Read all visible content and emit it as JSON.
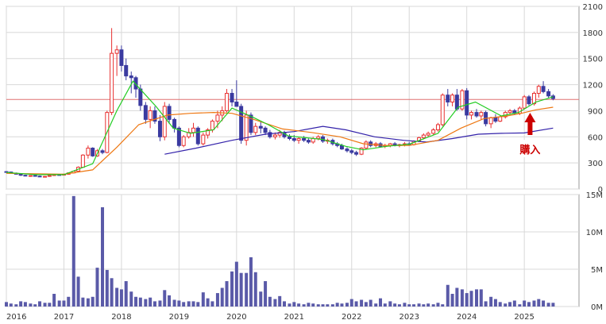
{
  "chart_data": [
    {
      "type": "candlestick",
      "x_labels": [
        "2016",
        "2017",
        "2018",
        "2019",
        "2020",
        "2021",
        "2022",
        "2023",
        "2024",
        "2025"
      ],
      "y_ticks": [
        "0",
        "300",
        "600",
        "900",
        "1200",
        "1500",
        "1800",
        "2100"
      ],
      "ylim": [
        0,
        2100
      ],
      "reference_line": 1030,
      "annotation": "購入",
      "colors": {
        "up": "#e83030",
        "down": "#3a3aa0",
        "ma_short": "#22cc22",
        "ma_mid": "#ee7711",
        "ma_long": "#3322aa",
        "ref": "#e07070",
        "annot": "#cc0000"
      },
      "grid": true,
      "candles": [
        [
          2016.0,
          200,
          205,
          188,
          195
        ],
        [
          2016.08,
          195,
          200,
          180,
          182
        ],
        [
          2016.17,
          182,
          190,
          165,
          170
        ],
        [
          2016.25,
          170,
          175,
          150,
          158
        ],
        [
          2016.33,
          158,
          165,
          145,
          150
        ],
        [
          2016.42,
          150,
          160,
          140,
          155
        ],
        [
          2016.5,
          155,
          162,
          145,
          148
        ],
        [
          2016.58,
          148,
          155,
          138,
          142
        ],
        [
          2016.67,
          142,
          150,
          135,
          145
        ],
        [
          2016.75,
          145,
          160,
          140,
          155
        ],
        [
          2016.83,
          155,
          170,
          150,
          165
        ],
        [
          2016.92,
          165,
          172,
          158,
          160
        ],
        [
          2017.0,
          160,
          175,
          155,
          170
        ],
        [
          2017.08,
          170,
          190,
          165,
          185
        ],
        [
          2017.17,
          185,
          210,
          180,
          205
        ],
        [
          2017.25,
          205,
          260,
          200,
          250
        ],
        [
          2017.33,
          250,
          400,
          245,
          390
        ],
        [
          2017.42,
          390,
          500,
          350,
          470
        ],
        [
          2017.5,
          470,
          480,
          370,
          380
        ],
        [
          2017.58,
          380,
          460,
          370,
          440
        ],
        [
          2017.67,
          440,
          460,
          400,
          420
        ],
        [
          2017.75,
          420,
          900,
          410,
          880
        ],
        [
          2017.83,
          880,
          1850,
          850,
          1560
        ],
        [
          2017.92,
          1560,
          1650,
          1300,
          1600
        ],
        [
          2018.0,
          1600,
          1650,
          1350,
          1420
        ],
        [
          2018.08,
          1420,
          1500,
          1250,
          1300
        ],
        [
          2018.17,
          1300,
          1350,
          1100,
          1280
        ],
        [
          2018.25,
          1280,
          1300,
          1050,
          1150
        ],
        [
          2018.33,
          1150,
          1200,
          900,
          960
        ],
        [
          2018.42,
          960,
          1000,
          750,
          800
        ],
        [
          2018.5,
          800,
          950,
          700,
          900
        ],
        [
          2018.58,
          900,
          950,
          750,
          780
        ],
        [
          2018.67,
          780,
          850,
          550,
          600
        ],
        [
          2018.75,
          600,
          1000,
          560,
          950
        ],
        [
          2018.83,
          950,
          980,
          750,
          800
        ],
        [
          2018.92,
          800,
          820,
          650,
          700
        ],
        [
          2019.0,
          700,
          720,
          480,
          500
        ],
        [
          2019.08,
          500,
          620,
          480,
          600
        ],
        [
          2019.17,
          600,
          700,
          580,
          650
        ],
        [
          2019.25,
          650,
          760,
          600,
          700
        ],
        [
          2019.33,
          700,
          720,
          500,
          520
        ],
        [
          2019.42,
          520,
          650,
          500,
          620
        ],
        [
          2019.5,
          620,
          700,
          580,
          680
        ],
        [
          2019.58,
          680,
          800,
          650,
          780
        ],
        [
          2019.67,
          780,
          900,
          700,
          850
        ],
        [
          2019.75,
          850,
          950,
          780,
          900
        ],
        [
          2019.83,
          900,
          1150,
          880,
          1100
        ],
        [
          2019.92,
          1100,
          1150,
          950,
          1000
        ],
        [
          2020.0,
          1000,
          1250,
          950,
          950
        ],
        [
          2020.08,
          950,
          980,
          520,
          560
        ],
        [
          2020.17,
          560,
          900,
          500,
          850
        ],
        [
          2020.25,
          850,
          880,
          620,
          650
        ],
        [
          2020.33,
          650,
          760,
          620,
          720
        ],
        [
          2020.42,
          720,
          780,
          640,
          700
        ],
        [
          2020.5,
          700,
          720,
          620,
          650
        ],
        [
          2020.58,
          650,
          680,
          580,
          600
        ],
        [
          2020.67,
          600,
          650,
          570,
          620
        ],
        [
          2020.75,
          620,
          680,
          590,
          650
        ],
        [
          2020.83,
          650,
          670,
          580,
          600
        ],
        [
          2020.92,
          600,
          630,
          560,
          580
        ],
        [
          2021.0,
          580,
          620,
          540,
          560
        ],
        [
          2021.08,
          560,
          600,
          520,
          580
        ],
        [
          2021.17,
          580,
          610,
          540,
          560
        ],
        [
          2021.25,
          560,
          580,
          520,
          540
        ],
        [
          2021.33,
          540,
          600,
          520,
          580
        ],
        [
          2021.42,
          580,
          620,
          560,
          600
        ],
        [
          2021.5,
          600,
          620,
          530,
          550
        ],
        [
          2021.58,
          550,
          580,
          520,
          560
        ],
        [
          2021.67,
          560,
          580,
          500,
          520
        ],
        [
          2021.75,
          520,
          540,
          480,
          500
        ],
        [
          2021.83,
          500,
          520,
          450,
          460
        ],
        [
          2021.92,
          460,
          480,
          420,
          440
        ],
        [
          2022.0,
          440,
          460,
          400,
          420
        ],
        [
          2022.08,
          420,
          440,
          380,
          400
        ],
        [
          2022.17,
          400,
          480,
          390,
          470
        ],
        [
          2022.25,
          470,
          560,
          460,
          540
        ],
        [
          2022.33,
          540,
          560,
          480,
          500
        ],
        [
          2022.42,
          500,
          540,
          480,
          520
        ],
        [
          2022.5,
          520,
          540,
          480,
          490
        ],
        [
          2022.58,
          490,
          520,
          470,
          500
        ],
        [
          2022.67,
          500,
          530,
          480,
          520
        ],
        [
          2022.75,
          520,
          540,
          490,
          500
        ],
        [
          2022.83,
          500,
          520,
          480,
          510
        ],
        [
          2022.92,
          510,
          540,
          490,
          520
        ],
        [
          2023.0,
          520,
          540,
          500,
          510
        ],
        [
          2023.08,
          510,
          560,
          500,
          550
        ],
        [
          2023.17,
          550,
          600,
          540,
          590
        ],
        [
          2023.25,
          590,
          640,
          570,
          620
        ],
        [
          2023.33,
          620,
          660,
          600,
          640
        ],
        [
          2023.42,
          640,
          700,
          620,
          680
        ],
        [
          2023.5,
          680,
          760,
          660,
          740
        ],
        [
          2023.58,
          740,
          1100,
          720,
          1080
        ],
        [
          2023.67,
          1080,
          1150,
          950,
          1000
        ],
        [
          2023.75,
          1000,
          1100,
          950,
          1080
        ],
        [
          2023.83,
          1080,
          1150,
          900,
          920
        ],
        [
          2023.92,
          920,
          1150,
          900,
          1130
        ],
        [
          2024.0,
          1130,
          1160,
          800,
          850
        ],
        [
          2024.08,
          850,
          900,
          800,
          880
        ],
        [
          2024.17,
          880,
          920,
          820,
          840
        ],
        [
          2024.25,
          840,
          900,
          800,
          880
        ],
        [
          2024.33,
          880,
          900,
          720,
          750
        ],
        [
          2024.42,
          750,
          830,
          700,
          820
        ],
        [
          2024.5,
          820,
          860,
          760,
          780
        ],
        [
          2024.58,
          780,
          850,
          770,
          830
        ],
        [
          2024.67,
          830,
          900,
          810,
          880
        ],
        [
          2024.75,
          880,
          920,
          860,
          900
        ],
        [
          2024.83,
          900,
          920,
          850,
          870
        ],
        [
          2024.92,
          870,
          950,
          850,
          930
        ],
        [
          2025.0,
          930,
          1080,
          920,
          1060
        ],
        [
          2025.08,
          1060,
          1080,
          960,
          980
        ],
        [
          2025.17,
          980,
          1120,
          960,
          1100
        ],
        [
          2025.25,
          1100,
          1200,
          1050,
          1180
        ],
        [
          2025.33,
          1180,
          1240,
          1100,
          1120
        ],
        [
          2025.42,
          1120,
          1150,
          1050,
          1070
        ],
        [
          2025.5,
          1070,
          1090,
          1020,
          1040
        ]
      ],
      "ma_short": [
        [
          2016.0,
          190
        ],
        [
          2016.5,
          165
        ],
        [
          2017.0,
          165
        ],
        [
          2017.5,
          290
        ],
        [
          2017.92,
          900
        ],
        [
          2018.2,
          1240
        ],
        [
          2018.6,
          950
        ],
        [
          2018.9,
          700
        ],
        [
          2019.2,
          640
        ],
        [
          2019.6,
          680
        ],
        [
          2019.92,
          930
        ],
        [
          2020.3,
          820
        ],
        [
          2020.55,
          740
        ],
        [
          2020.9,
          610
        ],
        [
          2021.5,
          570
        ],
        [
          2021.9,
          490
        ],
        [
          2022.2,
          450
        ],
        [
          2022.6,
          490
        ],
        [
          2023.0,
          515
        ],
        [
          2023.5,
          640
        ],
        [
          2023.85,
          940
        ],
        [
          2024.15,
          1000
        ],
        [
          2024.6,
          840
        ],
        [
          2024.9,
          880
        ],
        [
          2025.2,
          1000
        ],
        [
          2025.5,
          1060
        ]
      ],
      "ma_mid": [
        [
          2016.0,
          180
        ],
        [
          2016.5,
          175
        ],
        [
          2017.0,
          170
        ],
        [
          2017.5,
          220
        ],
        [
          2017.92,
          480
        ],
        [
          2018.3,
          740
        ],
        [
          2018.8,
          850
        ],
        [
          2019.2,
          870
        ],
        [
          2019.6,
          880
        ],
        [
          2019.92,
          870
        ],
        [
          2020.3,
          800
        ],
        [
          2020.8,
          690
        ],
        [
          2021.3,
          650
        ],
        [
          2021.8,
          600
        ],
        [
          2022.2,
          520
        ],
        [
          2022.6,
          500
        ],
        [
          2023.0,
          500
        ],
        [
          2023.5,
          560
        ],
        [
          2023.9,
          700
        ],
        [
          2024.3,
          810
        ],
        [
          2024.7,
          840
        ],
        [
          2024.95,
          870
        ],
        [
          2025.2,
          910
        ],
        [
          2025.5,
          940
        ]
      ],
      "ma_long": [
        [
          2018.75,
          400
        ],
        [
          2019.3,
          470
        ],
        [
          2019.92,
          560
        ],
        [
          2020.5,
          630
        ],
        [
          2021.0,
          660
        ],
        [
          2021.5,
          720
        ],
        [
          2021.9,
          680
        ],
        [
          2022.4,
          600
        ],
        [
          2022.9,
          560
        ],
        [
          2023.3,
          540
        ],
        [
          2023.75,
          580
        ],
        [
          2024.2,
          630
        ],
        [
          2024.6,
          640
        ],
        [
          2025.0,
          645
        ],
        [
          2025.5,
          700
        ]
      ]
    },
    {
      "type": "bar",
      "x_labels": [
        "2016",
        "2017",
        "2018",
        "2019",
        "2020",
        "2021",
        "2022",
        "2023",
        "2024",
        "2025"
      ],
      "y_ticks": [
        "0M",
        "5M",
        "10M",
        "15M"
      ],
      "ylim": [
        0,
        15
      ],
      "unit": "M",
      "color": "#5a5aa8",
      "x": [
        2016.0,
        2016.08,
        2016.17,
        2016.25,
        2016.33,
        2016.42,
        2016.5,
        2016.58,
        2016.67,
        2016.75,
        2016.83,
        2016.92,
        2017.0,
        2017.08,
        2017.17,
        2017.25,
        2017.33,
        2017.42,
        2017.5,
        2017.58,
        2017.67,
        2017.75,
        2017.83,
        2017.92,
        2018.0,
        2018.08,
        2018.17,
        2018.25,
        2018.33,
        2018.42,
        2018.5,
        2018.58,
        2018.67,
        2018.75,
        2018.83,
        2018.92,
        2019.0,
        2019.08,
        2019.17,
        2019.25,
        2019.33,
        2019.42,
        2019.5,
        2019.58,
        2019.67,
        2019.75,
        2019.83,
        2019.92,
        2020.0,
        2020.08,
        2020.17,
        2020.25,
        2020.33,
        2020.42,
        2020.5,
        2020.58,
        2020.67,
        2020.75,
        2020.83,
        2020.92,
        2021.0,
        2021.08,
        2021.17,
        2021.25,
        2021.33,
        2021.42,
        2021.5,
        2021.58,
        2021.67,
        2021.75,
        2021.83,
        2021.92,
        2022.0,
        2022.08,
        2022.17,
        2022.25,
        2022.33,
        2022.42,
        2022.5,
        2022.58,
        2022.67,
        2022.75,
        2022.83,
        2022.92,
        2023.0,
        2023.08,
        2023.17,
        2023.25,
        2023.33,
        2023.42,
        2023.5,
        2023.58,
        2023.67,
        2023.75,
        2023.83,
        2023.92,
        2024.0,
        2024.08,
        2024.17,
        2024.25,
        2024.33,
        2024.42,
        2024.5,
        2024.58,
        2024.67,
        2024.75,
        2024.83,
        2024.92,
        2025.0,
        2025.08,
        2025.17,
        2025.25,
        2025.33,
        2025.42,
        2025.5
      ],
      "values": [
        0.6,
        0.4,
        0.3,
        0.7,
        0.6,
        0.4,
        0.3,
        0.7,
        0.5,
        0.5,
        1.7,
        0.8,
        0.8,
        1.3,
        14.8,
        4.0,
        1.2,
        1.1,
        1.3,
        5.2,
        13.3,
        4.9,
        3.8,
        2.5,
        2.3,
        3.4,
        2.0,
        1.3,
        1.2,
        1.0,
        1.2,
        0.7,
        0.8,
        2.2,
        1.5,
        0.9,
        0.8,
        0.6,
        0.7,
        0.7,
        0.6,
        1.9,
        1.1,
        0.7,
        1.8,
        2.5,
        3.4,
        4.7,
        6.0,
        4.5,
        4.5,
        6.6,
        4.6,
        2.0,
        3.4,
        1.3,
        1.0,
        1.4,
        0.7,
        0.4,
        0.6,
        0.4,
        0.3,
        0.5,
        0.4,
        0.3,
        0.3,
        0.3,
        0.3,
        0.5,
        0.4,
        0.5,
        1.0,
        0.7,
        0.9,
        0.6,
        0.9,
        0.4,
        1.1,
        0.4,
        0.7,
        0.4,
        0.3,
        0.5,
        0.3,
        0.3,
        0.4,
        0.3,
        0.4,
        0.3,
        0.5,
        0.3,
        2.9,
        1.7,
        2.5,
        2.3,
        1.8,
        2.1,
        2.3,
        2.3,
        0.7,
        1.3,
        1.0,
        0.6,
        0.4,
        0.6,
        0.8,
        0.3,
        0.8,
        0.6,
        0.8,
        1.0,
        0.8,
        0.5,
        0.5
      ]
    }
  ]
}
